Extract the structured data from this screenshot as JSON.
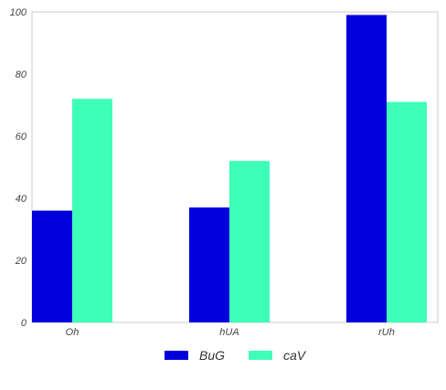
{
  "chart_data": {
    "type": "bar",
    "title": "",
    "xlabel": "",
    "ylabel": "",
    "categories": [
      "Oh",
      "hUA",
      "rUh"
    ],
    "series": [
      {
        "name": "BuG",
        "values": [
          36,
          37,
          99
        ],
        "color": "#0000dd"
      },
      {
        "name": "caV",
        "values": [
          72,
          52,
          71
        ],
        "color": "#3fffb8"
      }
    ],
    "ylim": [
      0,
      100
    ],
    "yticks": [
      0,
      20,
      40,
      60,
      80,
      100
    ],
    "grid": false,
    "legend_position": "bottom-center"
  }
}
